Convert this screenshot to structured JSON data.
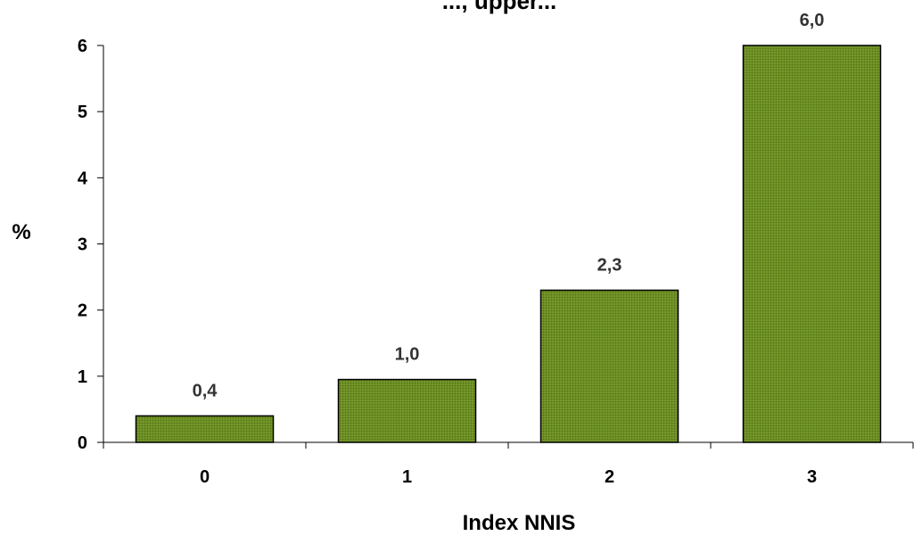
{
  "chart_data": {
    "type": "bar",
    "title": "..., upper...",
    "xlabel": "Index NNIS",
    "ylabel": "%",
    "categories": [
      "0",
      "1",
      "2",
      "3"
    ],
    "values": [
      0.4,
      0.95,
      2.3,
      6.0
    ],
    "data_labels": [
      "0,4",
      "1,0",
      "2,3",
      "6,0"
    ],
    "ylim": [
      0,
      6
    ],
    "yticks": [
      0,
      1,
      2,
      3,
      4,
      5,
      6
    ],
    "ytick_labels": [
      "0",
      "1",
      "2",
      "3",
      "4",
      "5",
      "6"
    ],
    "grid": false,
    "legend": "none",
    "bar_color": "#6b8e23",
    "bar_pattern_color": "#4f6b14",
    "bar_edge_color": "#000000"
  }
}
